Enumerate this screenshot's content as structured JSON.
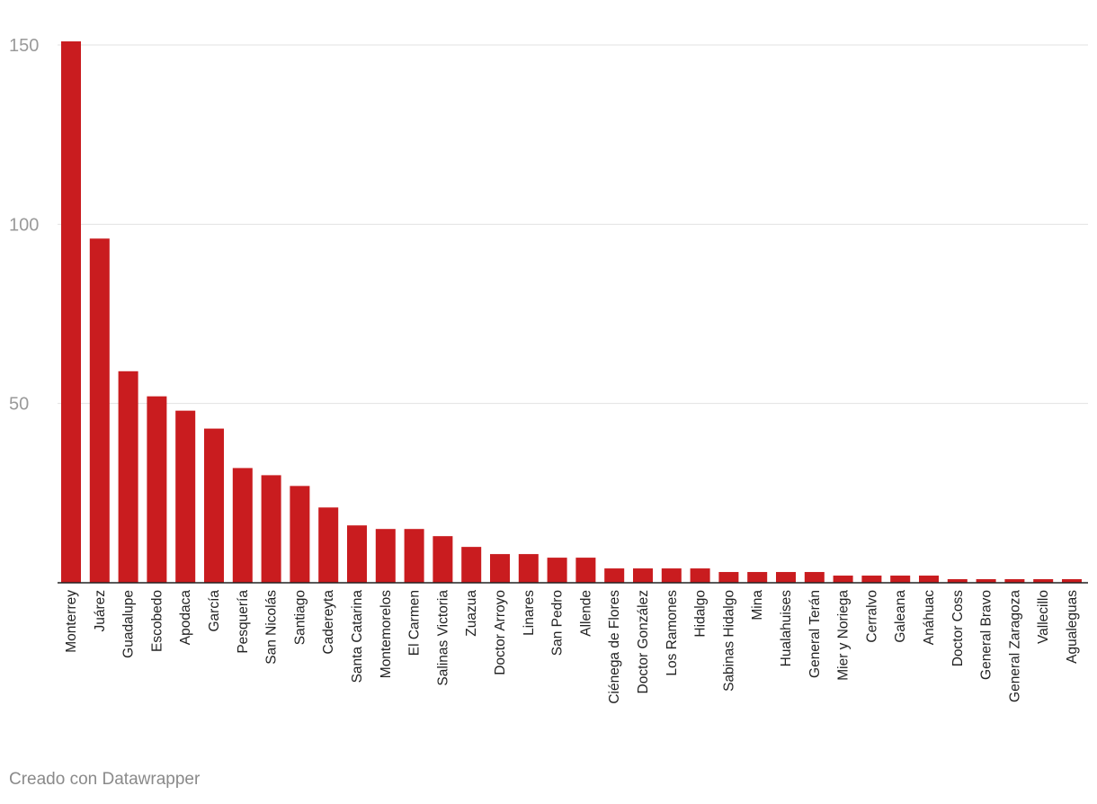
{
  "credit": "Creado con Datawrapper",
  "colors": {
    "bar": "#c91c1f",
    "grid": "#e2e2e2",
    "axis_text": "#9a9a9a",
    "label_text": "#222222",
    "baseline": "#222222"
  },
  "chart_data": {
    "type": "bar",
    "title": "",
    "xlabel": "",
    "ylabel": "",
    "ylim": [
      0,
      150
    ],
    "yticks": [
      50,
      100,
      150
    ],
    "grid": true,
    "categories": [
      "Monterrey",
      "Juárez",
      "Guadalupe",
      "Escobedo",
      "Apodaca",
      "García",
      "Pesquería",
      "San Nicolás",
      "Santiago",
      "Cadereyta",
      "Santa Catarina",
      "Montemorelos",
      "El Carmen",
      "Salinas Victoria",
      "Zuazua",
      "Doctor Arroyo",
      "Linares",
      "San Pedro",
      "Allende",
      "Ciénega de Flores",
      "Doctor González",
      "Los Ramones",
      "Hidalgo",
      "Sabinas Hidalgo",
      "Mina",
      "Hualahuises",
      "General Terán",
      "Mier y Noriega",
      "Cerralvo",
      "Galeana",
      "Anáhuac",
      "Doctor Coss",
      "General Bravo",
      "General Zaragoza",
      "Vallecillo",
      "Agualeguas"
    ],
    "values": [
      151,
      96,
      59,
      52,
      48,
      43,
      32,
      30,
      27,
      21,
      16,
      15,
      15,
      13,
      10,
      8,
      8,
      7,
      7,
      4,
      4,
      4,
      4,
      3,
      3,
      3,
      3,
      2,
      2,
      2,
      2,
      1,
      1,
      1,
      1,
      1
    ]
  }
}
